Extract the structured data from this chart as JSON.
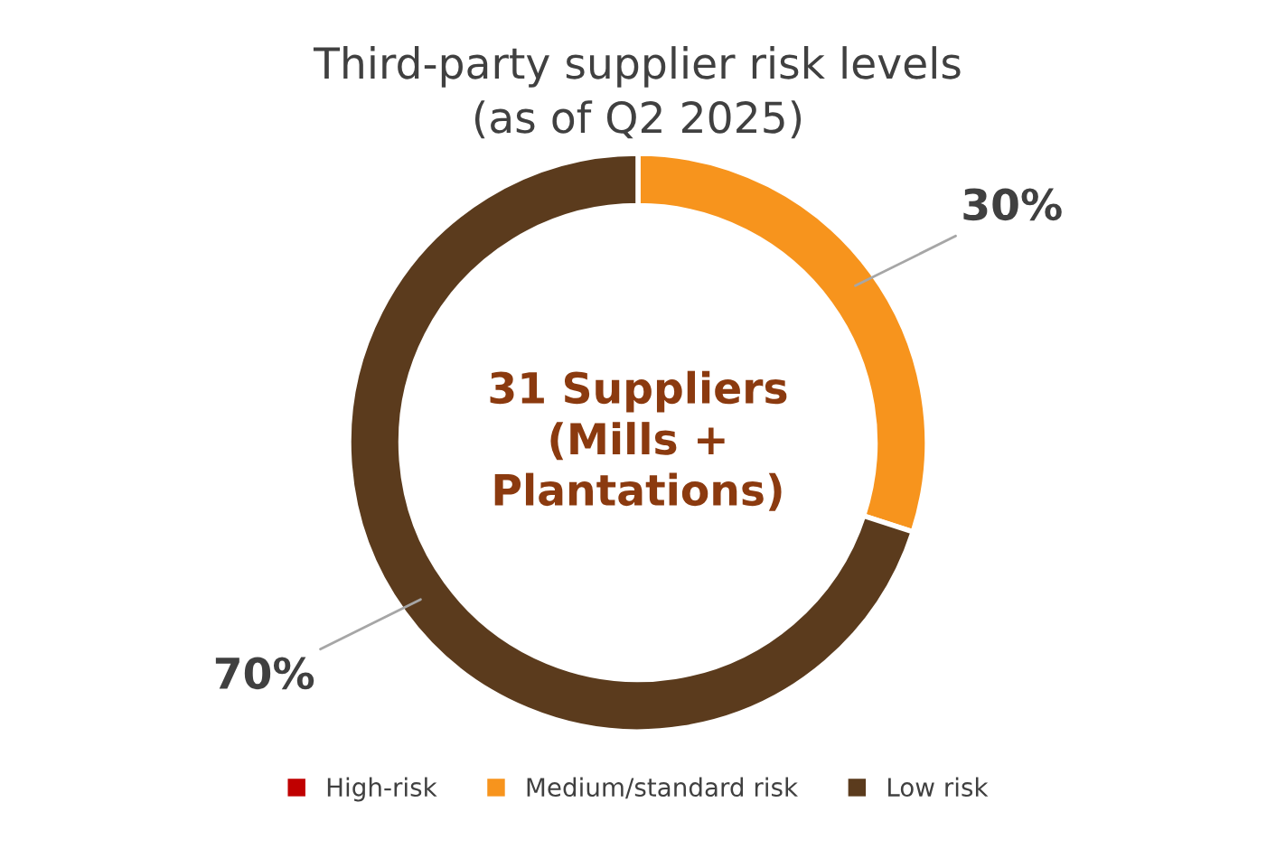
{
  "chart_data": {
    "type": "donut",
    "title": "Third-party supplier risk levels\n(as of Q2 2025)",
    "categories": [
      "High-risk",
      "Medium/standard risk",
      "Low risk"
    ],
    "values": [
      0,
      30,
      70
    ],
    "value_labels": [
      null,
      "30%",
      "70%"
    ],
    "colors": [
      "#c00000",
      "#f7941d",
      "#5b3b1d"
    ],
    "annotations": [
      "31 Suppliers\n(Mills +\nPlantations)"
    ],
    "legend": "bottom"
  }
}
